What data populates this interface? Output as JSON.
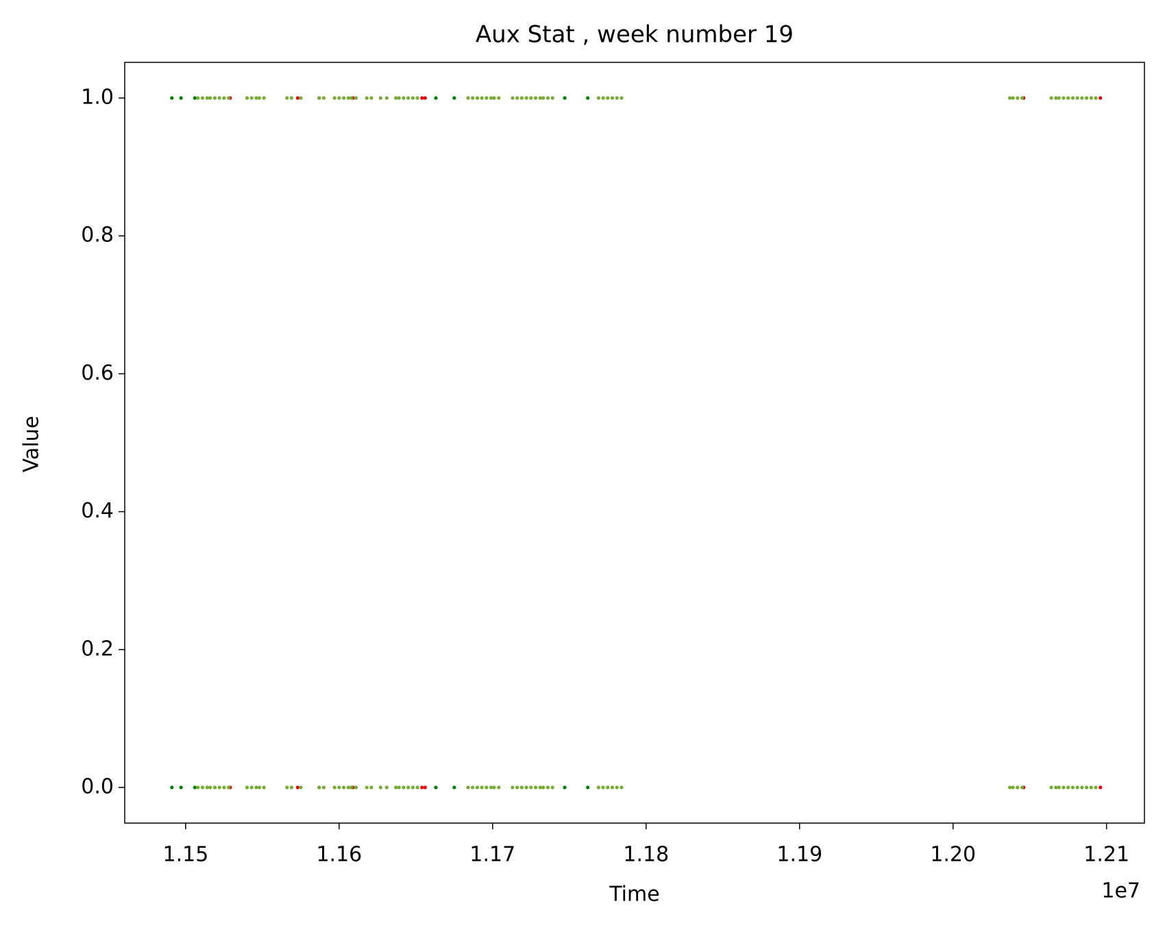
{
  "chart_data": {
    "type": "scatter",
    "title": "Aux Stat , week number 19",
    "x_label": "Time",
    "y_label": "Value",
    "x_offset_label": "1e7",
    "xlim": [
      11460300,
      12124700
    ],
    "ylim": [
      -0.0517,
      1.0517
    ],
    "xticks": [
      {
        "value": 11500000,
        "label": "1.15"
      },
      {
        "value": 11600000,
        "label": "1.16"
      },
      {
        "value": 11700000,
        "label": "1.17"
      },
      {
        "value": 11800000,
        "label": "1.18"
      },
      {
        "value": 11900000,
        "label": "1.19"
      },
      {
        "value": 12000000,
        "label": "1.20"
      },
      {
        "value": 12100000,
        "label": "1.21"
      }
    ],
    "yticks": [
      {
        "value": 0,
        "label": "0.0"
      },
      {
        "value": 0.2,
        "label": "0.2"
      },
      {
        "value": 0.4,
        "label": "0.4"
      },
      {
        "value": 0.6,
        "label": "0.6"
      },
      {
        "value": 0.8,
        "label": "0.8"
      },
      {
        "value": 1,
        "label": "1.0"
      }
    ],
    "series": [
      {
        "color": "#008000",
        "x": [
          11491000,
          11497000,
          11506000,
          11587000,
          11663000,
          11675000,
          11747000,
          11762000,
          11491000,
          11497000,
          11506000,
          11587000,
          11663000,
          11675000,
          11747000,
          11762000
        ],
        "values": [
          1,
          1,
          1,
          1,
          1,
          1,
          1,
          1,
          0,
          0,
          0,
          0,
          0,
          0,
          0,
          0
        ]
      },
      {
        "color": "#e8000b",
        "x": [
          11529000,
          11573000,
          11609000,
          11654000,
          11656000,
          12046000,
          12096000,
          11529000,
          11573000,
          11609000,
          11654000,
          11656000,
          12046000,
          12096000
        ],
        "values": [
          1,
          1,
          1,
          1,
          1,
          1,
          1,
          0,
          0,
          0,
          0,
          0,
          0,
          0
        ]
      },
      {
        "color": "#74ad32",
        "x": [
          11508000,
          11511000,
          11514000,
          11516000,
          11519000,
          11522000,
          11525000,
          11528000,
          11540000,
          11543000,
          11546000,
          11548000,
          11551000,
          11566000,
          11569000,
          11575000,
          11587000,
          11590000,
          11597000,
          11600000,
          11603000,
          11606000,
          11608000,
          11611000,
          11618000,
          11621000,
          11627000,
          11631000,
          11637000,
          11639000,
          11642000,
          11645000,
          11648000,
          11651000,
          11684000,
          11687000,
          11690000,
          11693000,
          11696000,
          11699000,
          11701000,
          11704000,
          11713000,
          11716000,
          11719000,
          11722000,
          11725000,
          11728000,
          11731000,
          11733000,
          11736000,
          11739000,
          11769000,
          11772000,
          11775000,
          11778000,
          11781000,
          11784000,
          12037000,
          12039000,
          12042000,
          12045000,
          12064000,
          12067000,
          12069000,
          12072000,
          12075000,
          12078000,
          12081000,
          12084000,
          12087000,
          12090000,
          12093000,
          11508000,
          11511000,
          11514000,
          11516000,
          11519000,
          11522000,
          11525000,
          11528000,
          11540000,
          11543000,
          11546000,
          11548000,
          11551000,
          11566000,
          11569000,
          11575000,
          11587000,
          11590000,
          11597000,
          11600000,
          11603000,
          11606000,
          11608000,
          11611000,
          11618000,
          11621000,
          11627000,
          11631000,
          11637000,
          11639000,
          11642000,
          11645000,
          11648000,
          11651000,
          11684000,
          11687000,
          11690000,
          11693000,
          11696000,
          11699000,
          11701000,
          11704000,
          11713000,
          11716000,
          11719000,
          11722000,
          11725000,
          11728000,
          11731000,
          11733000,
          11736000,
          11739000,
          11769000,
          11772000,
          11775000,
          11778000,
          11781000,
          11784000,
          12037000,
          12039000,
          12042000,
          12045000,
          12064000,
          12067000,
          12069000,
          12072000,
          12075000,
          12078000,
          12081000,
          12084000,
          12087000,
          12090000,
          12093000
        ],
        "values": [
          1,
          1,
          1,
          1,
          1,
          1,
          1,
          1,
          1,
          1,
          1,
          1,
          1,
          1,
          1,
          1,
          1,
          1,
          1,
          1,
          1,
          1,
          1,
          1,
          1,
          1,
          1,
          1,
          1,
          1,
          1,
          1,
          1,
          1,
          1,
          1,
          1,
          1,
          1,
          1,
          1,
          1,
          1,
          1,
          1,
          1,
          1,
          1,
          1,
          1,
          1,
          1,
          1,
          1,
          1,
          1,
          1,
          1,
          1,
          1,
          1,
          1,
          1,
          1,
          1,
          1,
          1,
          1,
          1,
          1,
          1,
          1,
          1,
          0,
          0,
          0,
          0,
          0,
          0,
          0,
          0,
          0,
          0,
          0,
          0,
          0,
          0,
          0,
          0,
          0,
          0,
          0,
          0,
          0,
          0,
          0,
          0,
          0,
          0,
          0,
          0,
          0,
          0,
          0,
          0,
          0,
          0,
          0,
          0,
          0,
          0,
          0,
          0,
          0,
          0,
          0,
          0,
          0,
          0,
          0,
          0,
          0,
          0,
          0,
          0,
          0,
          0,
          0,
          0,
          0,
          0,
          0,
          0,
          0,
          0,
          0,
          0,
          0,
          0,
          0,
          0,
          0,
          0,
          0,
          0,
          0
        ]
      }
    ]
  }
}
